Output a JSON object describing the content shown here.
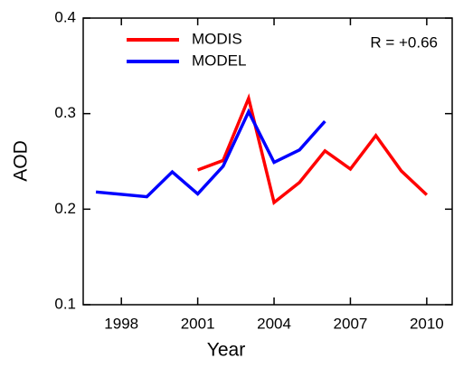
{
  "chart_data": {
    "type": "line",
    "x_label": "Year",
    "y_label": "AOD",
    "annotation": "R = +0.66",
    "series": [
      {
        "name": "MODIS",
        "color": "#ff0000",
        "x": [
          2001,
          2002,
          2003,
          2004,
          2005,
          2006,
          2007,
          2008,
          2009,
          2010
        ],
        "values": [
          0.241,
          0.251,
          0.316,
          0.207,
          0.228,
          0.261,
          0.242,
          0.277,
          0.24,
          0.215
        ]
      },
      {
        "name": "MODEL",
        "color": "#0000ff",
        "x": [
          1997,
          1999,
          2000,
          2001,
          2002,
          2003,
          2004,
          2005,
          2006
        ],
        "values": [
          0.218,
          0.213,
          0.239,
          0.216,
          0.245,
          0.302,
          0.249,
          0.262,
          0.292
        ]
      }
    ],
    "xlim": [
      1996.5,
      2011
    ],
    "xticks": [
      1998,
      2001,
      2004,
      2007,
      2010
    ],
    "ylim": [
      0.1,
      0.4
    ],
    "yticks": [
      0.1,
      0.2,
      0.3,
      0.4
    ],
    "legend": "upper left"
  }
}
